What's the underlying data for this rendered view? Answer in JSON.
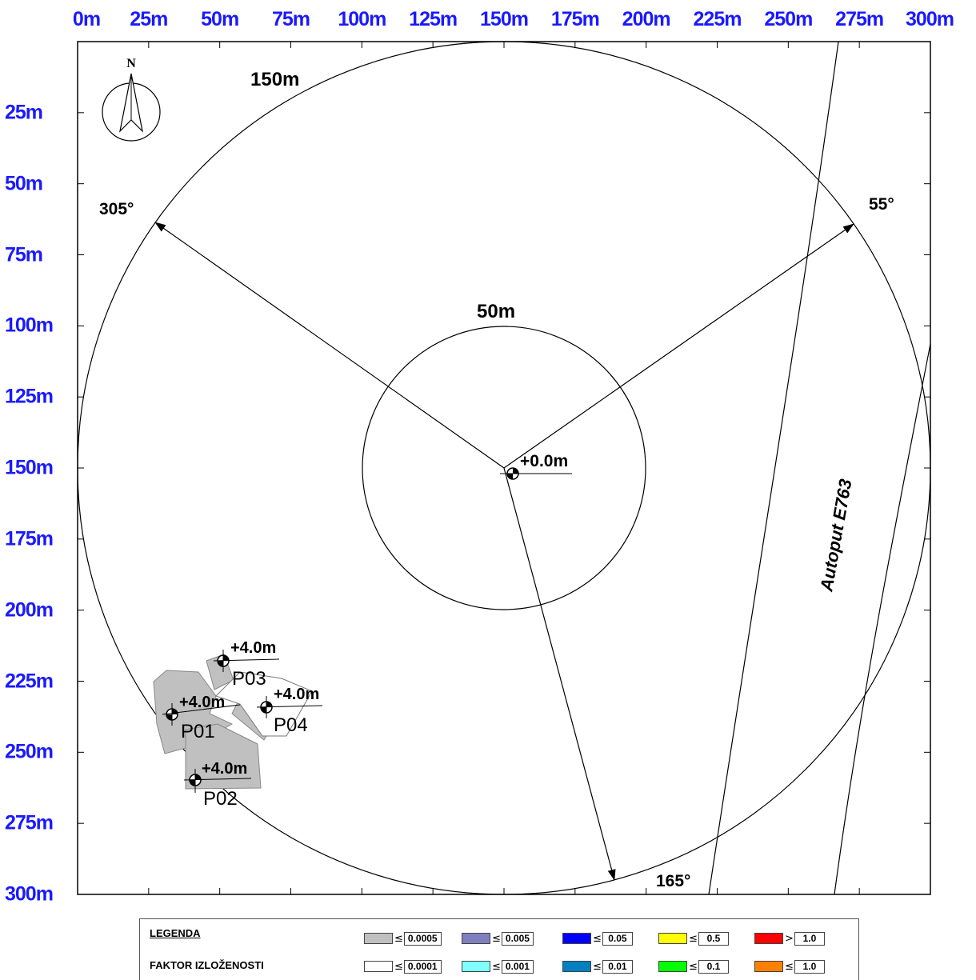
{
  "x_axis_labels": [
    "0m",
    "25m",
    "50m",
    "75m",
    "100m",
    "125m",
    "150m",
    "175m",
    "200m",
    "225m",
    "250m",
    "275m",
    "300m"
  ],
  "y_axis_labels": [
    "25m",
    "50m",
    "75m",
    "100m",
    "125m",
    "150m",
    "175m",
    "200m",
    "225m",
    "250m",
    "275m",
    "300m"
  ],
  "map": {
    "north_label": "N",
    "outer_radius_label": "150m",
    "inner_radius_label": "50m",
    "center_height": "+0.0m",
    "directions": [
      "305°",
      "55°",
      "165°"
    ],
    "road_label": "Autoput E763",
    "points": [
      {
        "id": "P01",
        "height": "+4.0m"
      },
      {
        "id": "P02",
        "height": "+4.0m"
      },
      {
        "id": "P03",
        "height": "+4.0m"
      },
      {
        "id": "P04",
        "height": "+4.0m"
      }
    ]
  },
  "legend": {
    "title": "LEGENDA",
    "subtitle": "FAKTOR IZLOŽENOSTI",
    "row1": [
      {
        "color": "#c0c0c0",
        "op": "≤",
        "value": "0.0005"
      },
      {
        "color": "#8080c0",
        "op": "≤",
        "value": "0.005"
      },
      {
        "color": "#0000ff",
        "op": "≤",
        "value": "0.05"
      },
      {
        "color": "#ffff00",
        "op": "≤",
        "value": "0.5"
      },
      {
        "color": "#ff0000",
        "op": ">",
        "value": "1.0"
      }
    ],
    "row2": [
      {
        "color": "#ffffff",
        "op": "≤",
        "value": "0.0001"
      },
      {
        "color": "#80ffff",
        "op": "≤",
        "value": "0.001"
      },
      {
        "color": "#0080c0",
        "op": "≤",
        "value": "0.01"
      },
      {
        "color": "#00ff00",
        "op": "≤",
        "value": "0.1"
      },
      {
        "color": "#ff8000",
        "op": "≤",
        "value": "1.0"
      }
    ]
  }
}
